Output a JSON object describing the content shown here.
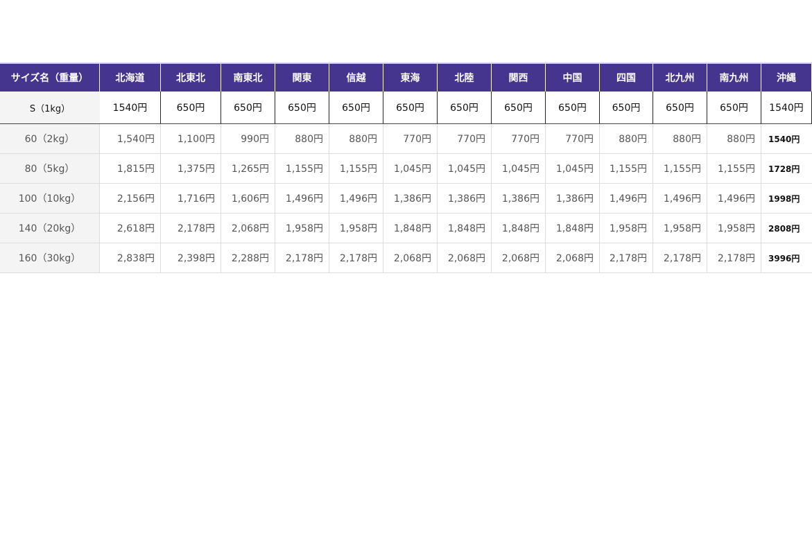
{
  "header_color": "#45358f",
  "columns": [
    "サイズ名（重量）",
    "北海道",
    "北東北",
    "南東北",
    "関東",
    "信越",
    "東海",
    "北陸",
    "関西",
    "中国",
    "四国",
    "北九州",
    "南九州",
    "沖縄"
  ],
  "rows": [
    [
      "S（1kg）",
      "1540円",
      "650円",
      "650円",
      "650円",
      "650円",
      "650円",
      "650円",
      "650円",
      "650円",
      "650円",
      "650円",
      "650円",
      "1540円"
    ],
    [
      "60（2kg）",
      "1,540円",
      "1,100円",
      "990円",
      "880円",
      "880円",
      "770円",
      "770円",
      "770円",
      "770円",
      "880円",
      "880円",
      "880円",
      "1540円"
    ],
    [
      "80（5kg）",
      "1,815円",
      "1,375円",
      "1,265円",
      "1,155円",
      "1,155円",
      "1,045円",
      "1,045円",
      "1,045円",
      "1,045円",
      "1,155円",
      "1,155円",
      "1,155円",
      "1728円"
    ],
    [
      "100（10kg）",
      "2,156円",
      "1,716円",
      "1,606円",
      "1,496円",
      "1,496円",
      "1,386円",
      "1,386円",
      "1,386円",
      "1,386円",
      "1,496円",
      "1,496円",
      "1,496円",
      "1998円"
    ],
    [
      "140（20kg）",
      "2,618円",
      "2,178円",
      "2,068円",
      "1,958円",
      "1,958円",
      "1,848円",
      "1,848円",
      "1,848円",
      "1,848円",
      "1,958円",
      "1,958円",
      "1,958円",
      "2808円"
    ],
    [
      "160（30kg）",
      "2,838円",
      "2,398円",
      "2,288円",
      "2,178円",
      "2,178円",
      "2,068円",
      "2,068円",
      "2,068円",
      "2,068円",
      "2,178円",
      "2,178円",
      "2,178円",
      "3996円"
    ]
  ]
}
